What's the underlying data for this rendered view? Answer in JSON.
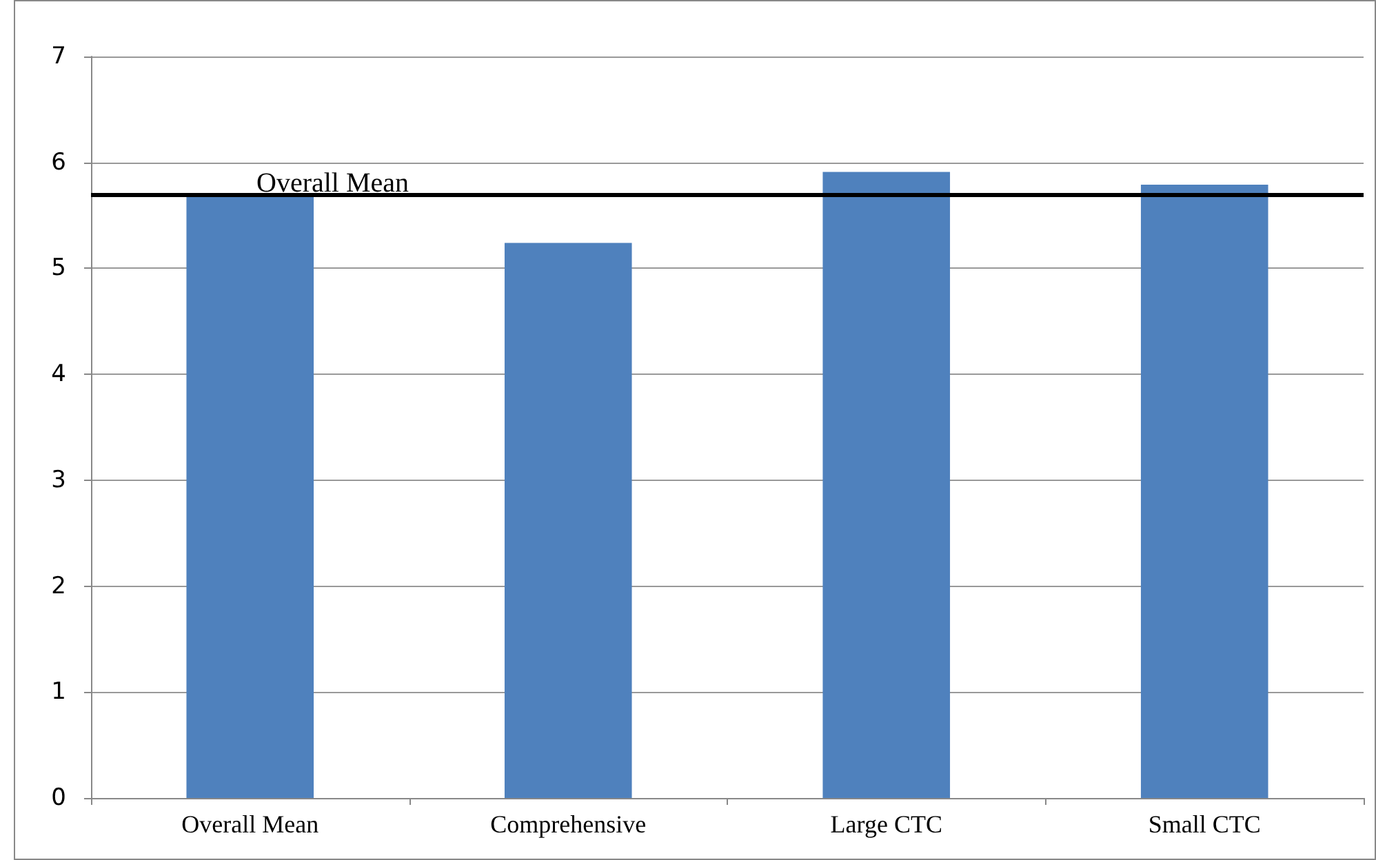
{
  "chart_data": {
    "type": "bar",
    "categories": [
      "Overall Mean",
      "Comprehensive",
      "Large CTC",
      "Small CTC"
    ],
    "values": [
      5.7,
      5.24,
      5.91,
      5.79
    ],
    "color": "#4f81bd",
    "ylim": [
      0,
      7
    ],
    "yticks": [
      0,
      1,
      2,
      3,
      4,
      5,
      6,
      7
    ],
    "grid": "y",
    "ref_lines": [
      {
        "axis": "y",
        "value": 5.7,
        "label": "Overall Mean",
        "color": "#000000"
      }
    ]
  }
}
